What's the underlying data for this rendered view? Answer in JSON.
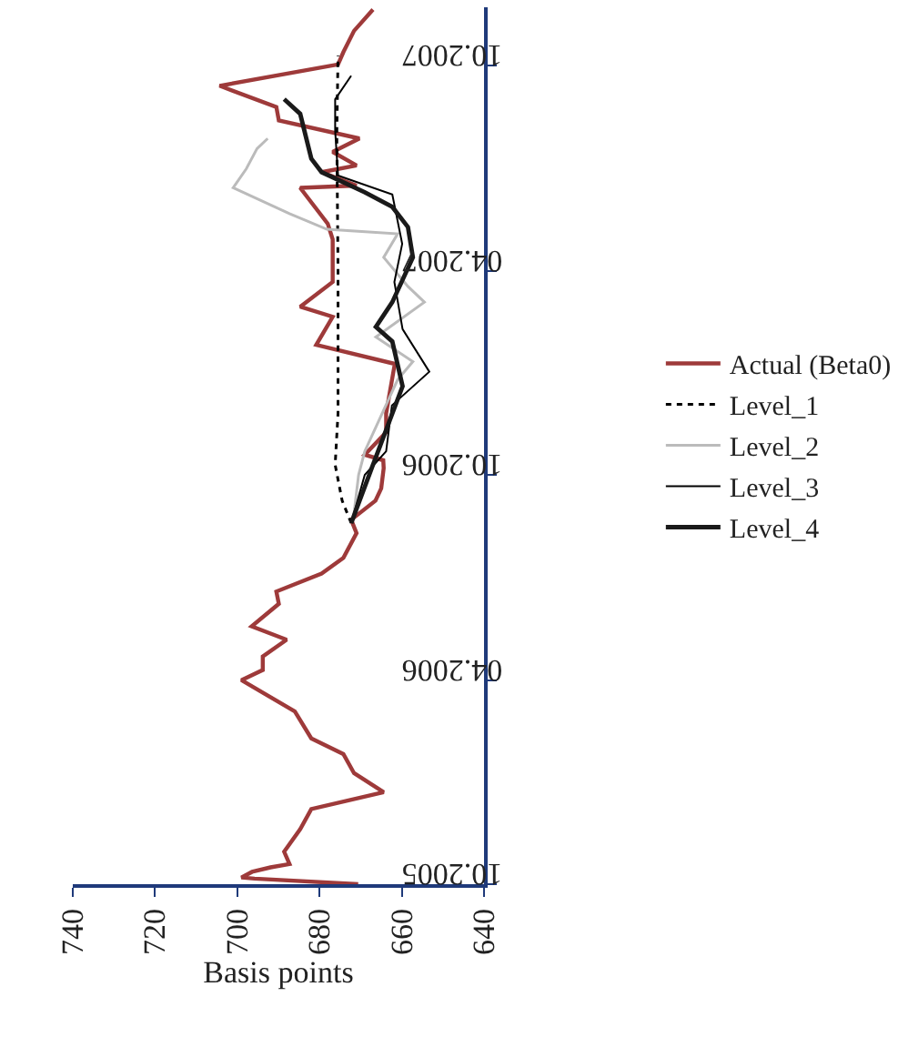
{
  "chart_data": {
    "type": "line",
    "orientation": "horizontal",
    "xlabel": "Basis points",
    "xlim": [
      740,
      640
    ],
    "xticks": [
      740,
      720,
      700,
      680,
      660,
      640
    ],
    "ylim": [
      "2005-10-01",
      "2007-11-22"
    ],
    "yticks": [
      {
        "value": "2005-10-01",
        "label": "10.2005"
      },
      {
        "value": "2006-04-01",
        "label": "04.2006"
      },
      {
        "value": "2006-10-01",
        "label": "10.2006"
      },
      {
        "value": "2007-04-01",
        "label": "04.2007"
      },
      {
        "value": "2007-10-01",
        "label": "10.2007"
      }
    ],
    "legend": "right",
    "marker": "none",
    "series": [
      {
        "name": "Actual (Beta0)",
        "color": "#9e3a3a",
        "line_style": "solid",
        "x": [
          "2005-10-01",
          "2005-10-06",
          "2005-10-07",
          "2005-10-12",
          "2005-10-16",
          "2005-10-19",
          "2005-10-30",
          "2005-11-19",
          "2005-12-07",
          "2005-12-22",
          "2006-01-08",
          "2006-01-25",
          "2006-02-08",
          "2006-03-04",
          "2006-04-01",
          "2006-04-10",
          "2006-04-22",
          "2006-05-07",
          "2006-05-19",
          "2006-06-08",
          "2006-06-19",
          "2006-07-05",
          "2006-07-19",
          "2006-08-10",
          "2006-08-22",
          "2006-09-08",
          "2006-09-19",
          "2006-10-07",
          "2006-10-14",
          "2006-10-19",
          "2006-11-08",
          "2006-11-25",
          "2007-01-08",
          "2007-01-25",
          "2007-02-19",
          "2007-02-28",
          "2007-03-22",
          "2007-04-13",
          "2007-04-29",
          "2007-05-13",
          "2007-06-14",
          "2007-06-16",
          "2007-06-28",
          "2007-07-04",
          "2007-07-16",
          "2007-07-28",
          "2007-08-13",
          "2007-08-25",
          "2007-09-13",
          "2007-10-02",
          "2007-10-13",
          "2007-11-01",
          "2007-11-20"
        ],
        "values": [
          670.6,
          695.8,
          699,
          696.4,
          691.9,
          687.3,
          688.6,
          684.7,
          682,
          664.4,
          671.6,
          674.2,
          682,
          686,
          699,
          693.8,
          693.8,
          688,
          696.5,
          689.9,
          690.5,
          679.5,
          674.2,
          671,
          672.3,
          666.4,
          665,
          664.4,
          664.5,
          669,
          663.8,
          663.8,
          661.7,
          680.8,
          676.8,
          684.7,
          676.8,
          676.8,
          676.8,
          678,
          684.7,
          671,
          679.5,
          671,
          676.8,
          670.3,
          689.9,
          690.5,
          704.3,
          675.5,
          674.2,
          671.6,
          667
        ]
      },
      {
        "name": "Level_1",
        "color": "#000000",
        "line_style": "dotted",
        "x": [
          "2006-08-19",
          "2006-09-08",
          "2006-10-10",
          "2006-11-25",
          "2007-04-01",
          "2007-08-01",
          "2007-10-10"
        ],
        "values": [
          672.3,
          674.5,
          676.2,
          675.5,
          675.5,
          675.8,
          675.5
        ]
      },
      {
        "name": "Level_2",
        "color": "#bbbbbb",
        "line_style": "solid",
        "x": [
          "2006-08-22",
          "2006-10-01",
          "2006-10-22",
          "2006-12-25",
          "2007-01-10",
          "2007-02-01",
          "2007-03-04",
          "2007-03-18",
          "2007-04-13",
          "2007-05-04",
          "2007-05-08",
          "2007-05-22",
          "2007-06-14",
          "2007-07-01",
          "2007-07-19",
          "2007-07-28"
        ],
        "values": [
          671.8,
          670.5,
          669,
          661,
          657.3,
          666.3,
          654.5,
          658.5,
          664.4,
          661,
          678.2,
          687.3,
          701,
          697.8,
          695.2,
          692.6
        ]
      },
      {
        "name": "Level_3",
        "color": "#000000",
        "line_style": "solid",
        "x": [
          "2006-08-19",
          "2006-10-01",
          "2006-10-22",
          "2006-12-02",
          "2007-01-01",
          "2007-02-08",
          "2007-03-22",
          "2007-04-25",
          "2007-06-08",
          "2007-06-25",
          "2007-08-04",
          "2007-09-01",
          "2007-09-22"
        ],
        "values": [
          672.3,
          669,
          663.8,
          662.4,
          653.3,
          659.8,
          661.8,
          659.9,
          662.3,
          675.5,
          676.2,
          676.2,
          672.3
        ]
      },
      {
        "name": "Level_4",
        "color": "#1a1a1a",
        "line_style": "solid",
        "x": [
          "2006-08-19",
          "2006-10-10",
          "2006-12-19",
          "2007-01-28",
          "2007-02-10",
          "2007-03-04",
          "2007-04-13",
          "2007-05-10",
          "2007-05-28",
          "2007-06-10",
          "2007-06-28",
          "2007-07-10",
          "2007-08-19",
          "2007-09-01"
        ],
        "values": [
          672.3,
          667,
          659.8,
          662.3,
          666.3,
          662.3,
          657.3,
          658.5,
          662.3,
          669,
          679.5,
          682,
          684.7,
          688.6
        ]
      }
    ]
  }
}
